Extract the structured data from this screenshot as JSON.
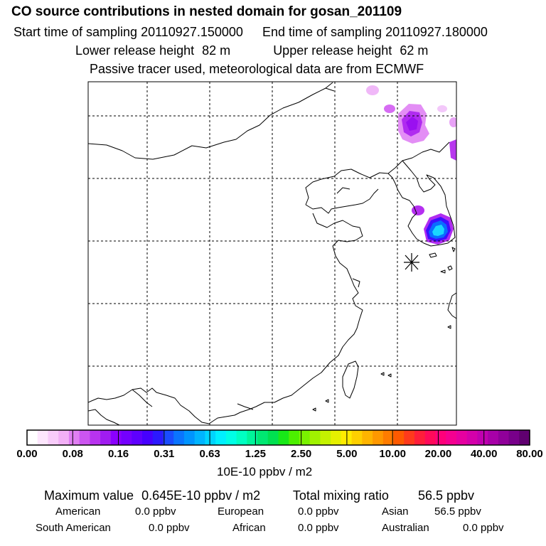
{
  "header": {
    "title": "CO  source contributions in nested domain for gosan_201109",
    "start_label": "Start time of sampling",
    "start_value": "20110927.150000",
    "end_label": "End time of sampling",
    "end_value": "20110927.180000",
    "lower_label": "Lower release height",
    "lower_value": "82 m",
    "upper_label": "Upper release height",
    "upper_value": "62 m",
    "tracer_note": "Passive tracer used, meteorological data are from ECMWF"
  },
  "colorbar": {
    "ticks": [
      "0.00",
      "0.08",
      "0.16",
      "0.31",
      "0.63",
      "1.25",
      "2.50",
      "5.00",
      "10.00",
      "20.00",
      "40.00",
      "80.00"
    ],
    "colors": [
      "#ffffff",
      "#fde6fd",
      "#f8ccfa",
      "#f2b0f6",
      "#e07ff2",
      "#cc55f0",
      "#b833ef",
      "#a01cf0",
      "#8a00ff",
      "#7400ff",
      "#5e00ff",
      "#4600ff",
      "#2c19ff",
      "#1a4cff",
      "#0a74ff",
      "#0094ff",
      "#00b4ff",
      "#00d4ff",
      "#00f0ff",
      "#00ffe6",
      "#00ffc2",
      "#00f59a",
      "#00e872",
      "#00e050",
      "#18e818",
      "#4cf000",
      "#7af200",
      "#a0f200",
      "#c4f200",
      "#e6f000",
      "#ffec00",
      "#ffd000",
      "#ffb400",
      "#ff9800",
      "#ff7c00",
      "#ff5a00",
      "#ff3a1c",
      "#ff1e3a",
      "#ff0a5a",
      "#ff007a",
      "#f50090",
      "#e600a0",
      "#d400aa",
      "#c000b0",
      "#a800a8",
      "#90009a",
      "#78008a",
      "#600070"
    ],
    "unit": "10E-10 ppbv / m2"
  },
  "summary": {
    "max_label": "Maximum value",
    "max_value": "0.645E-10 ppbv / m2",
    "total_label": "Total mixing ratio",
    "total_value": "56.5 ppbv"
  },
  "regions": [
    {
      "name": "American",
      "value": "0.0 ppbv"
    },
    {
      "name": "European",
      "value": "0.0 ppbv"
    },
    {
      "name": "Asian",
      "value": "56.5 ppbv"
    },
    {
      "name": "South American",
      "value": "0.0 ppbv"
    },
    {
      "name": "African",
      "value": "0.0 ppbv"
    },
    {
      "name": "Australian",
      "value": "0.0 ppbv"
    }
  ],
  "map": {
    "receptor_name": "gosan",
    "marker_symbol": "asterisk",
    "plume_colors": {
      "light": "#e38ef5",
      "mid": "#b02cf0",
      "core_purple": "#8a00ff",
      "blue": "#0a6cff",
      "cyan": "#1ad6ff"
    }
  }
}
